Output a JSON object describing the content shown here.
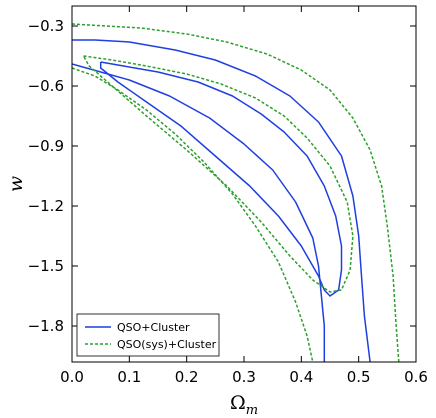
{
  "chart_data": {
    "type": "line",
    "title": "",
    "xlabel": "Ω_m",
    "ylabel": "w",
    "xlim": [
      0.0,
      0.6
    ],
    "ylim": [
      -1.98,
      -0.2
    ],
    "xticks": [
      "0.0",
      "0.1",
      "0.2",
      "0.3",
      "0.4",
      "0.5",
      "0.6"
    ],
    "yticks": [
      "−0.3",
      "−0.6",
      "−0.9",
      "−1.2",
      "−1.5",
      "−1.8"
    ],
    "xtick_values": [
      0.0,
      0.1,
      0.2,
      0.3,
      0.4,
      0.5,
      0.6
    ],
    "ytick_values": [
      -0.3,
      -0.6,
      -0.9,
      -1.2,
      -1.5,
      -1.8
    ],
    "grid": false,
    "legend_position": "bottom-left",
    "series": [
      {
        "name": "QSO+Cluster",
        "color": "#1f3fe0",
        "style": "solid",
        "contours": [
          {
            "level": "inner",
            "points": [
              [
                0.05,
                -0.48
              ],
              [
                0.09,
                -0.5
              ],
              [
                0.15,
                -0.53
              ],
              [
                0.22,
                -0.58
              ],
              [
                0.28,
                -0.65
              ],
              [
                0.33,
                -0.74
              ],
              [
                0.37,
                -0.83
              ],
              [
                0.41,
                -0.95
              ],
              [
                0.44,
                -1.1
              ],
              [
                0.46,
                -1.25
              ],
              [
                0.47,
                -1.4
              ],
              [
                0.47,
                -1.52
              ],
              [
                0.465,
                -1.62
              ],
              [
                0.45,
                -1.65
              ],
              [
                0.44,
                -1.62
              ],
              [
                0.43,
                -1.55
              ],
              [
                0.4,
                -1.4
              ],
              [
                0.36,
                -1.25
              ],
              [
                0.31,
                -1.1
              ],
              [
                0.25,
                -0.95
              ],
              [
                0.19,
                -0.8
              ],
              [
                0.13,
                -0.68
              ],
              [
                0.08,
                -0.58
              ],
              [
                0.05,
                -0.51
              ],
              [
                0.05,
                -0.48
              ]
            ]
          },
          {
            "level": "outer",
            "points": [
              [
                0.0,
                -0.37
              ],
              [
                0.04,
                -0.37
              ],
              [
                0.1,
                -0.38
              ],
              [
                0.18,
                -0.42
              ],
              [
                0.25,
                -0.47
              ],
              [
                0.32,
                -0.55
              ],
              [
                0.38,
                -0.65
              ],
              [
                0.43,
                -0.78
              ],
              [
                0.47,
                -0.95
              ],
              [
                0.49,
                -1.15
              ],
              [
                0.5,
                -1.35
              ],
              [
                0.505,
                -1.55
              ],
              [
                0.51,
                -1.75
              ],
              [
                0.52,
                -1.98
              ]
            ]
          },
          {
            "level": "outer",
            "points": [
              [
                0.0,
                -0.49
              ],
              [
                0.05,
                -0.53
              ],
              [
                0.1,
                -0.57
              ],
              [
                0.17,
                -0.65
              ],
              [
                0.24,
                -0.76
              ],
              [
                0.3,
                -0.89
              ],
              [
                0.35,
                -1.02
              ],
              [
                0.39,
                -1.18
              ],
              [
                0.42,
                -1.36
              ],
              [
                0.43,
                -1.5
              ],
              [
                0.435,
                -1.65
              ],
              [
                0.44,
                -1.8
              ],
              [
                0.44,
                -1.98
              ]
            ]
          }
        ]
      },
      {
        "name": "QSO(sys)+Cluster",
        "color": "#2aa02a",
        "style": "dashed",
        "contours": [
          {
            "level": "inner",
            "points": [
              [
                0.02,
                -0.45
              ],
              [
                0.07,
                -0.47
              ],
              [
                0.13,
                -0.5
              ],
              [
                0.2,
                -0.54
              ],
              [
                0.26,
                -0.59
              ],
              [
                0.32,
                -0.66
              ],
              [
                0.37,
                -0.75
              ],
              [
                0.41,
                -0.86
              ],
              [
                0.45,
                -1.0
              ],
              [
                0.48,
                -1.18
              ],
              [
                0.49,
                -1.35
              ],
              [
                0.485,
                -1.52
              ],
              [
                0.47,
                -1.62
              ],
              [
                0.45,
                -1.63
              ],
              [
                0.42,
                -1.57
              ],
              [
                0.38,
                -1.45
              ],
              [
                0.33,
                -1.28
              ],
              [
                0.27,
                -1.1
              ],
              [
                0.2,
                -0.92
              ],
              [
                0.13,
                -0.75
              ],
              [
                0.07,
                -0.6
              ],
              [
                0.03,
                -0.5
              ],
              [
                0.02,
                -0.45
              ]
            ]
          },
          {
            "level": "outer",
            "points": [
              [
                0.0,
                -0.29
              ],
              [
                0.06,
                -0.3
              ],
              [
                0.12,
                -0.31
              ],
              [
                0.2,
                -0.34
              ],
              [
                0.27,
                -0.38
              ],
              [
                0.34,
                -0.44
              ],
              [
                0.4,
                -0.52
              ],
              [
                0.45,
                -0.62
              ],
              [
                0.49,
                -0.76
              ],
              [
                0.52,
                -0.92
              ],
              [
                0.54,
                -1.1
              ],
              [
                0.55,
                -1.3
              ],
              [
                0.56,
                -1.55
              ],
              [
                0.565,
                -1.78
              ],
              [
                0.57,
                -1.98
              ]
            ]
          },
          {
            "level": "outer",
            "points": [
              [
                0.0,
                -0.51
              ],
              [
                0.04,
                -0.55
              ],
              [
                0.08,
                -0.62
              ],
              [
                0.13,
                -0.72
              ],
              [
                0.18,
                -0.84
              ],
              [
                0.23,
                -0.98
              ],
              [
                0.28,
                -1.14
              ],
              [
                0.32,
                -1.3
              ],
              [
                0.36,
                -1.48
              ],
              [
                0.39,
                -1.68
              ],
              [
                0.41,
                -1.85
              ],
              [
                0.42,
                -1.98
              ]
            ]
          }
        ]
      }
    ]
  }
}
